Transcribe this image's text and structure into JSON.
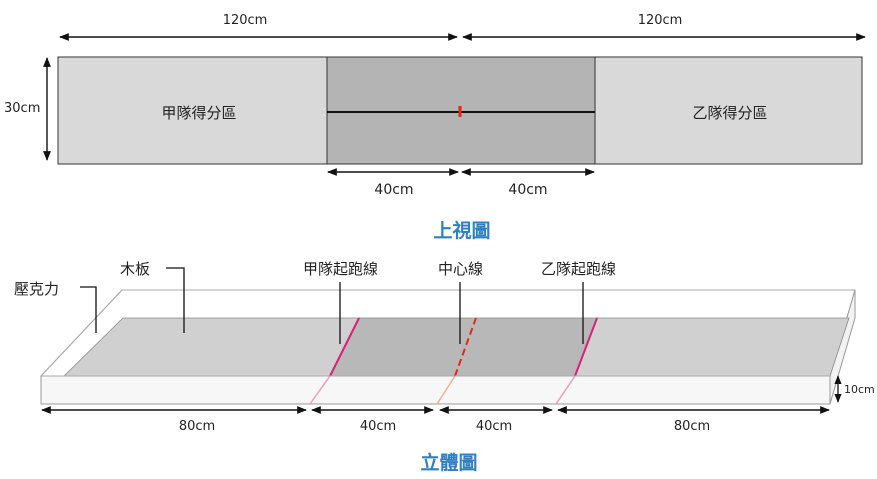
{
  "top_view": {
    "width_label_left": "120cm",
    "width_label_right": "120cm",
    "height_label": "30cm",
    "team_a_zone": "甲隊得分區",
    "team_b_zone": "乙隊得分區",
    "center_left_label": "40cm",
    "center_right_label": "40cm",
    "title": "上視圖"
  },
  "iso_view": {
    "acrylic_label": "壓克力",
    "board_label": "木板",
    "team_a_start_label": "甲隊起跑線",
    "center_line_label": "中心線",
    "team_b_start_label": "乙隊起跑線",
    "height_label": "10cm",
    "dim_1": "80cm",
    "dim_2": "40cm",
    "dim_3": "40cm",
    "dim_4": "80cm",
    "title": "立體圖"
  },
  "colors": {
    "zone_light": "#d9d9d9",
    "zone_dark": "#b4b4b4",
    "title_blue": "#2f7fc2",
    "start_line": "#d4247a",
    "center_marker": "#e8241c"
  }
}
